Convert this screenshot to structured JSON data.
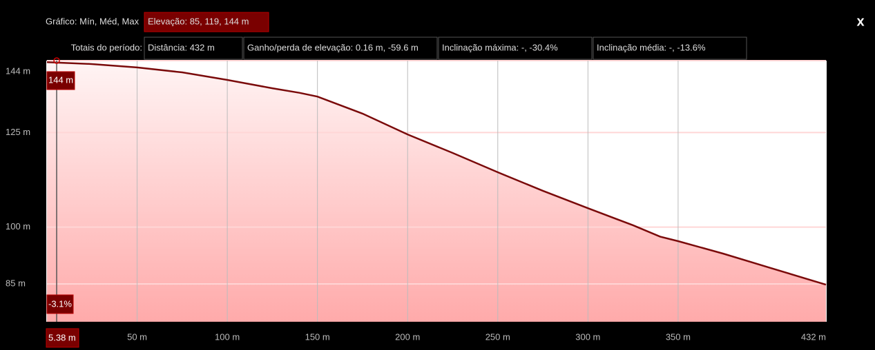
{
  "header": {
    "chart_label": "Gráfico: Mín, Méd, Max",
    "elevation": "Elevação: 85, 119, 144 m",
    "close": "x",
    "totals_label": "Totais do período:",
    "distance": "Distância: 432 m",
    "gain_loss": "Ganho/perda de elevação: 0.16 m, -59.6 m",
    "max_slope": "Inclinação máxima: -, -30.4%",
    "avg_slope": "Inclinação média: -, -13.6%"
  },
  "chart_data": {
    "type": "line",
    "x": [
      0,
      25,
      50,
      75,
      100,
      125,
      140,
      150,
      175,
      200,
      225,
      250,
      275,
      300,
      325,
      340,
      350,
      375,
      400,
      432
    ],
    "series": [
      {
        "color": "#7a0a0a",
        "values": [
          143.6,
          143.1,
          142.2,
          140.9,
          138.9,
          136.7,
          135.5,
          134.5,
          130,
          124.5,
          119.6,
          114.5,
          109.6,
          105,
          100.5,
          97.5,
          96.3,
          93,
          89.4,
          84.8
        ]
      }
    ],
    "xlim": [
      0,
      432
    ],
    "xticks": [
      {
        "value": 50,
        "label": "50 m"
      },
      {
        "value": 100,
        "label": "100 m"
      },
      {
        "value": 150,
        "label": "150 m"
      },
      {
        "value": 200,
        "label": "200 m"
      },
      {
        "value": 250,
        "label": "250 m"
      },
      {
        "value": 300,
        "label": "300 m"
      },
      {
        "value": 350,
        "label": "350 m"
      },
      {
        "value": 432,
        "label": "432 m"
      }
    ],
    "ylim": [
      75,
      144
    ],
    "yticks": [
      {
        "value": 144,
        "label": "144 m"
      },
      {
        "value": 125,
        "label": "125 m"
      },
      {
        "value": 100,
        "label": "100 m"
      },
      {
        "value": 85,
        "label": "85 m"
      }
    ],
    "grid": true,
    "cursor": {
      "x": 5.38,
      "x_label": "5.38 m",
      "elevation_label": "144 m",
      "slope_label": "-3.1%"
    }
  }
}
